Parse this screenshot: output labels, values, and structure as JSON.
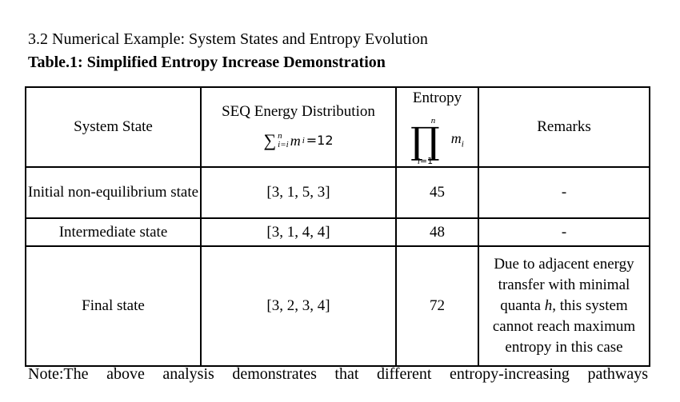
{
  "section_heading": "3.2 Numerical Example: System States and Entropy Evolution",
  "table_caption": "Table.1: Simplified Entropy Increase Demonstration",
  "table": {
    "headers": {
      "system_state": "System State",
      "seq_title": "SEQ Energy Distribution",
      "seq_formula": {
        "sigma": "∑",
        "upper": "n",
        "lower": "i=i",
        "term": "m",
        "term_sub": "i",
        "equals": "=12"
      },
      "entropy_title": "Entropy",
      "entropy_formula": {
        "upper": "n",
        "symbol": "∏",
        "lower_var": "i",
        "lower_rest": "=1",
        "term": "m",
        "term_sub": "i"
      },
      "remarks": "Remarks"
    },
    "rows": [
      {
        "state": "Initial non-equilibrium state",
        "distribution": "[3, 1, 5, 3]",
        "entropy": "45",
        "remarks": "-"
      },
      {
        "state": "Intermediate state",
        "distribution": "[3, 1, 4, 4]",
        "entropy": "48",
        "remarks": "-"
      },
      {
        "state": "Final state",
        "distribution": "[3, 2, 3, 4]",
        "entropy": "72",
        "remarks_parts": {
          "before": "Due to adjacent energy transfer with minimal quanta ",
          "italic": "h",
          "after": ", this system cannot reach maximum entropy in this case"
        }
      }
    ]
  },
  "note": "Note:The above analysis demonstrates that different entropy-increasing pathways"
}
